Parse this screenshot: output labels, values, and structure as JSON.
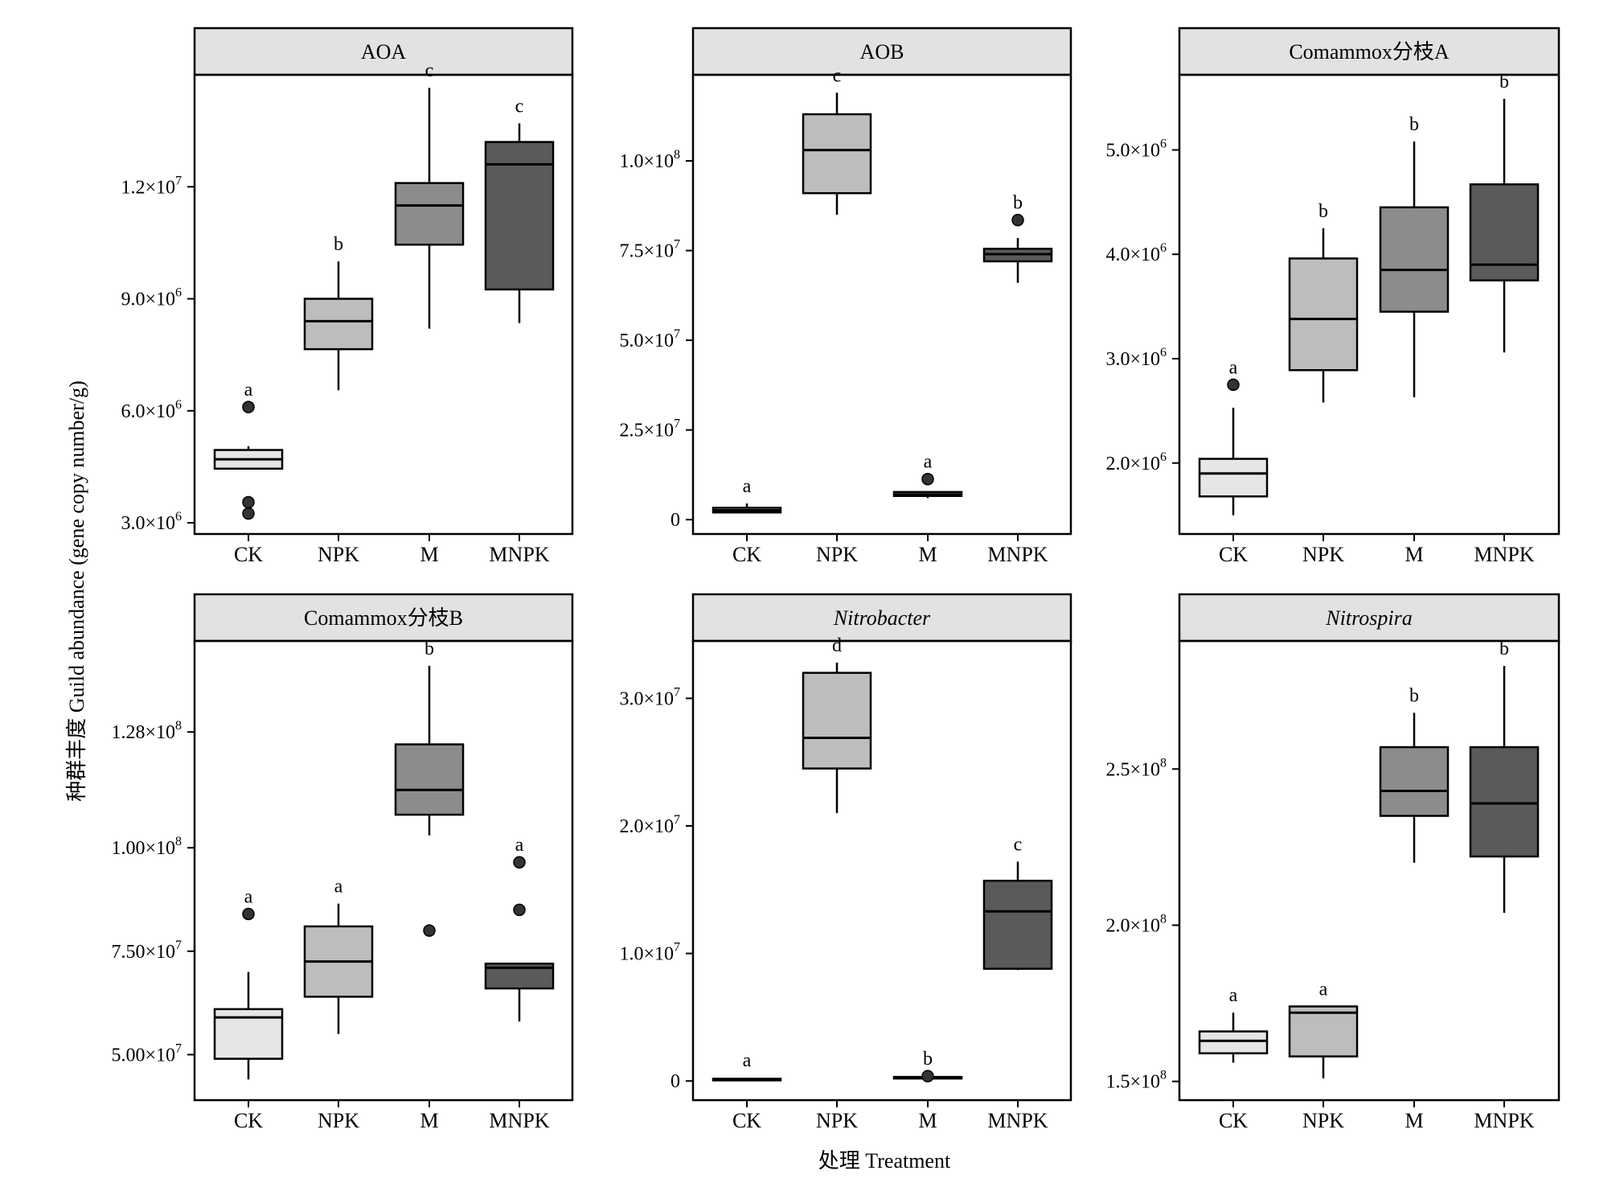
{
  "figure": {
    "ylabel": "种群丰度  Guild abundance (gene copy number/g)",
    "xlabel": "处理 Treatment"
  },
  "chart_data": [
    {
      "type": "box",
      "title": "AOA",
      "italic": false,
      "categories": [
        "CK",
        "NPK",
        "M",
        "MNPK"
      ],
      "ylim": [
        2700000,
        15000000
      ],
      "yticks": [
        {
          "value": 3000000,
          "base": "3.0×10",
          "exp": "6"
        },
        {
          "value": 6000000,
          "base": "6.0×10",
          "exp": "6"
        },
        {
          "value": 9000000,
          "base": "9.0×10",
          "exp": "6"
        },
        {
          "value": 12000000,
          "base": "1.2×10",
          "exp": "7"
        }
      ],
      "boxes": [
        {
          "min": 4450000,
          "q1": 4450000,
          "median": 4700000,
          "q3": 4950000,
          "max": 5050000,
          "outliers": [
            6100000,
            3550000,
            3250000
          ],
          "fill": "#e6e6e6",
          "letter": "a"
        },
        {
          "min": 6550000,
          "q1": 7650000,
          "median": 8400000,
          "q3": 9000000,
          "max": 10000000,
          "outliers": [],
          "fill": "#bdbdbd",
          "letter": "b"
        },
        {
          "min": 8200000,
          "q1": 10450000,
          "median": 11500000,
          "q3": 12100000,
          "max": 14650000,
          "outliers": [],
          "fill": "#8c8c8c",
          "letter": "c"
        },
        {
          "min": 8350000,
          "q1": 9250000,
          "median": 12600000,
          "q3": 13200000,
          "max": 13700000,
          "outliers": [],
          "fill": "#5a5a5a",
          "letter": "c"
        }
      ]
    },
    {
      "type": "box",
      "title": "AOB",
      "italic": false,
      "categories": [
        "CK",
        "NPK",
        "M",
        "MNPK"
      ],
      "ylim": [
        -4000000,
        124000000
      ],
      "yticks": [
        {
          "value": 0,
          "base": "0",
          "exp": ""
        },
        {
          "value": 25000000,
          "base": "2.5×10",
          "exp": "7"
        },
        {
          "value": 50000000,
          "base": "5.0×10",
          "exp": "7"
        },
        {
          "value": 75000000,
          "base": "7.5×10",
          "exp": "7"
        },
        {
          "value": 100000000,
          "base": "1.0×10",
          "exp": "8"
        }
      ],
      "boxes": [
        {
          "min": 2000000,
          "q1": 2000000,
          "median": 2600000,
          "q3": 3300000,
          "max": 4500000,
          "outliers": [],
          "fill": "#e6e6e6",
          "letter": "a"
        },
        {
          "min": 85000000,
          "q1": 91000000,
          "median": 103000000,
          "q3": 113000000,
          "max": 119000000,
          "outliers": [],
          "fill": "#bdbdbd",
          "letter": "c"
        },
        {
          "min": 6000000,
          "q1": 6600000,
          "median": 7000000,
          "q3": 7700000,
          "max": 8000000,
          "outliers": [
            11300000
          ],
          "fill": "#8c8c8c",
          "letter": "a"
        },
        {
          "min": 66000000,
          "q1": 72000000,
          "median": 74000000,
          "q3": 75500000,
          "max": 78500000,
          "outliers": [
            83500000
          ],
          "fill": "#5a5a5a",
          "letter": "b"
        }
      ]
    },
    {
      "type": "box",
      "title": "Comammox分枝A",
      "italic": false,
      "categories": [
        "CK",
        "NPK",
        "M",
        "MNPK"
      ],
      "ylim": [
        1320000,
        5720000
      ],
      "yticks": [
        {
          "value": 2000000,
          "base": "2.0×10",
          "exp": "6"
        },
        {
          "value": 3000000,
          "base": "3.0×10",
          "exp": "6"
        },
        {
          "value": 4000000,
          "base": "4.0×10",
          "exp": "6"
        },
        {
          "value": 5000000,
          "base": "5.0×10",
          "exp": "6"
        }
      ],
      "boxes": [
        {
          "min": 1500000,
          "q1": 1680000,
          "median": 1900000,
          "q3": 2040000,
          "max": 2530000,
          "outliers": [
            2750000
          ],
          "fill": "#e6e6e6",
          "letter": "a"
        },
        {
          "min": 2580000,
          "q1": 2890000,
          "median": 3380000,
          "q3": 3960000,
          "max": 4250000,
          "outliers": [],
          "fill": "#bdbdbd",
          "letter": "b"
        },
        {
          "min": 2630000,
          "q1": 3450000,
          "median": 3850000,
          "q3": 4450000,
          "max": 5080000,
          "outliers": [],
          "fill": "#8c8c8c",
          "letter": "b"
        },
        {
          "min": 3060000,
          "q1": 3750000,
          "median": 3900000,
          "q3": 4670000,
          "max": 5490000,
          "outliers": [],
          "fill": "#5a5a5a",
          "letter": "b"
        }
      ]
    },
    {
      "type": "box",
      "title": "Comammox分枝B",
      "italic": false,
      "categories": [
        "CK",
        "NPK",
        "M",
        "MNPK"
      ],
      "ylim": [
        39000000,
        150000000
      ],
      "yticks": [
        {
          "value": 50000000,
          "base": "5.00×10",
          "exp": "7"
        },
        {
          "value": 75000000,
          "base": "7.50×10",
          "exp": "7"
        },
        {
          "value": 100000000,
          "base": "1.00×10",
          "exp": "8"
        },
        {
          "value": 128000000,
          "base": "1.28×10",
          "exp": "8"
        }
      ],
      "boxes": [
        {
          "min": 44000000,
          "q1": 49000000,
          "median": 59000000,
          "q3": 61000000,
          "max": 70000000,
          "outliers": [
            84000000
          ],
          "fill": "#e6e6e6",
          "letter": "a"
        },
        {
          "min": 55000000,
          "q1": 64000000,
          "median": 72500000,
          "q3": 81000000,
          "max": 86500000,
          "outliers": [],
          "fill": "#bdbdbd",
          "letter": "a"
        },
        {
          "min": 103000000,
          "q1": 108000000,
          "median": 114000000,
          "q3": 125000000,
          "max": 144000000,
          "outliers": [
            80000000
          ],
          "fill": "#8c8c8c",
          "letter": "b"
        },
        {
          "min": 58000000,
          "q1": 66000000,
          "median": 71000000,
          "q3": 72000000,
          "max": 72000000,
          "outliers": [
            96500000,
            85000000
          ],
          "fill": "#5a5a5a",
          "letter": "a"
        }
      ]
    },
    {
      "type": "box",
      "title": "Nitrobacter",
      "italic": true,
      "categories": [
        "CK",
        "NPK",
        "M",
        "MNPK"
      ],
      "ylim": [
        -1500000,
        34500000
      ],
      "yticks": [
        {
          "value": 0,
          "base": "0",
          "exp": ""
        },
        {
          "value": 10000000,
          "base": "1.0×10",
          "exp": "7"
        },
        {
          "value": 20000000,
          "base": "2.0×10",
          "exp": "7"
        },
        {
          "value": 30000000,
          "base": "3.0×10",
          "exp": "7"
        }
      ],
      "boxes": [
        {
          "min": 50000,
          "q1": 50000,
          "median": 100000,
          "q3": 180000,
          "max": 250000,
          "outliers": [],
          "fill": "#e6e6e6",
          "letter": "a"
        },
        {
          "min": 21000000,
          "q1": 24500000,
          "median": 26900000,
          "q3": 32000000,
          "max": 32800000,
          "outliers": [],
          "fill": "#bdbdbd",
          "letter": "d"
        },
        {
          "min": 150000,
          "q1": 200000,
          "median": 250000,
          "q3": 320000,
          "max": 400000,
          "outliers": [
            380000
          ],
          "fill": "#8c8c8c",
          "letter": "b"
        },
        {
          "min": 8700000,
          "q1": 8800000,
          "median": 13300000,
          "q3": 15700000,
          "max": 17200000,
          "outliers": [],
          "fill": "#5a5a5a",
          "letter": "c"
        }
      ]
    },
    {
      "type": "box",
      "title": "Nitrospira",
      "italic": true,
      "categories": [
        "CK",
        "NPK",
        "M",
        "MNPK"
      ],
      "ylim": [
        144000000,
        291000000
      ],
      "yticks": [
        {
          "value": 150000000,
          "base": "1.5×10",
          "exp": "8"
        },
        {
          "value": 200000000,
          "base": "2.0×10",
          "exp": "8"
        },
        {
          "value": 250000000,
          "base": "2.5×10",
          "exp": "8"
        }
      ],
      "boxes": [
        {
          "min": 156000000,
          "q1": 159000000,
          "median": 163000000,
          "q3": 166000000,
          "max": 172000000,
          "outliers": [],
          "fill": "#e6e6e6",
          "letter": "a"
        },
        {
          "min": 151000000,
          "q1": 158000000,
          "median": 172000000,
          "q3": 174000000,
          "max": 174000000,
          "outliers": [],
          "fill": "#bdbdbd",
          "letter": "a"
        },
        {
          "min": 220000000,
          "q1": 235000000,
          "median": 243000000,
          "q3": 257000000,
          "max": 268000000,
          "outliers": [],
          "fill": "#8c8c8c",
          "letter": "b"
        },
        {
          "min": 204000000,
          "q1": 222000000,
          "median": 239000000,
          "q3": 257000000,
          "max": 283000000,
          "outliers": [],
          "fill": "#5a5a5a",
          "letter": "b"
        }
      ]
    }
  ]
}
